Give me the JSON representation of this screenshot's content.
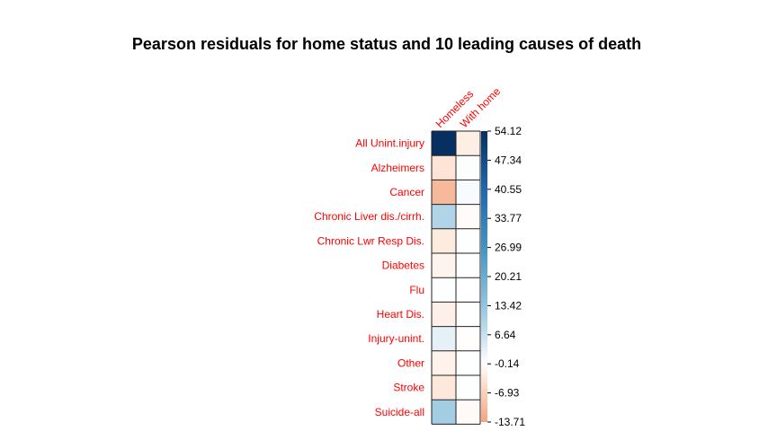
{
  "chart_data": {
    "type": "heatmap",
    "title": "Pearson residuals for home status and 10 leading causes of death",
    "columns": [
      "Homeless",
      "With home"
    ],
    "rows": [
      "All Unint.injury",
      "Alzheimers",
      "Cancer",
      "Chronic Liver dis./cirrh.",
      "Chronic Lwr Resp Dis.",
      "Diabetes",
      "Flu",
      "Heart Dis.",
      "Injury-unint.",
      "Other",
      "Stroke",
      "Suicide-all"
    ],
    "values": [
      [
        54.12,
        -2.6
      ],
      [
        -4.0,
        0.3
      ],
      [
        -10.5,
        0.9
      ],
      [
        9.5,
        -0.6
      ],
      [
        -3.0,
        0.2
      ],
      [
        -1.6,
        0.1
      ],
      [
        0.2,
        0.0
      ],
      [
        -2.2,
        0.1
      ],
      [
        3.0,
        -0.2
      ],
      [
        -2.0,
        0.1
      ],
      [
        -3.5,
        0.2
      ],
      [
        11.5,
        -0.8
      ]
    ],
    "colorbar": {
      "range": [
        -13.71,
        54.12
      ],
      "ticks": [
        "54.12",
        "47.34",
        "40.55",
        "33.77",
        "26.99",
        "20.21",
        "13.42",
        "6.64",
        "-0.14",
        "-6.93",
        "-13.71"
      ]
    },
    "label_color": "#ff0000"
  }
}
